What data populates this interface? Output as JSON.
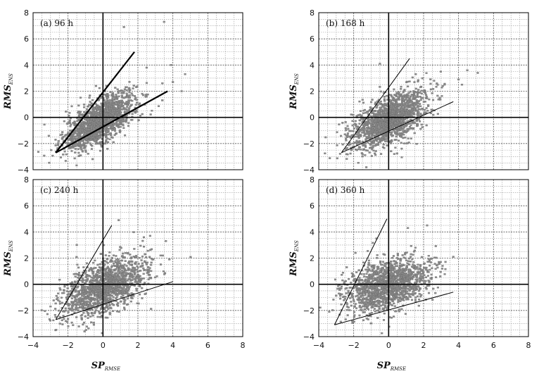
{
  "chart_data": [
    {
      "type": "scatter",
      "panel_label": "(a) 96 h",
      "xlabel": "SP",
      "xlabel_sub": "RMSE",
      "ylabel": "RMS",
      "ylabel_sub": "ENS",
      "xlim": [
        -4,
        8
      ],
      "ylim": [
        -4,
        8
      ],
      "xticks": [
        "−4",
        "−2",
        "0",
        "2",
        "4",
        "6",
        "8"
      ],
      "yticks": [
        "−4",
        "−2",
        "0",
        "2",
        "4",
        "6",
        "8"
      ],
      "grid": true,
      "cloud": {
        "center": [
          -0.2,
          -0.3
        ],
        "spread": [
          1.0,
          0.8
        ],
        "slope": 0.75
      },
      "lines": [
        {
          "x": [
            -2.7,
            1.8
          ],
          "y": [
            -2.7,
            5.0
          ]
        },
        {
          "x": [
            -2.7,
            3.7
          ],
          "y": [
            -2.7,
            2.0
          ]
        }
      ],
      "line_weight": "bold",
      "outliers": [
        [
          1.2,
          6.9
        ],
        [
          3.5,
          7.3
        ],
        [
          3.9,
          4.0
        ],
        [
          4.7,
          3.3
        ],
        [
          4.0,
          2.7
        ],
        [
          3.4,
          2.6
        ],
        [
          4.5,
          2.0
        ],
        [
          -0.4,
          2.4
        ],
        [
          2.5,
          3.8
        ]
      ]
    },
    {
      "type": "scatter",
      "panel_label": "(b) 168 h",
      "xlabel": "SP",
      "xlabel_sub": "RMSE",
      "ylabel": "RMS",
      "ylabel_sub": "ENS",
      "xlim": [
        -4,
        8
      ],
      "ylim": [
        -4,
        8
      ],
      "xticks": [
        "−4",
        "−2",
        "0",
        "2",
        "4",
        "6",
        "8"
      ],
      "yticks": [
        "−4",
        "−2",
        "0",
        "2",
        "4",
        "6",
        "8"
      ],
      "grid": true,
      "cloud": {
        "center": [
          0.0,
          -0.2
        ],
        "spread": [
          1.1,
          0.9
        ],
        "slope": 0.6
      },
      "lines": [
        {
          "x": [
            -2.7,
            1.2
          ],
          "y": [
            -2.7,
            4.5
          ]
        },
        {
          "x": [
            -2.7,
            3.7
          ],
          "y": [
            -2.7,
            1.2
          ]
        }
      ],
      "line_weight": "thin",
      "outliers": [
        [
          -0.5,
          4.1
        ],
        [
          4.5,
          3.6
        ],
        [
          5.1,
          3.4
        ],
        [
          4.0,
          2.9
        ],
        [
          4.2,
          2.5
        ],
        [
          3.2,
          2.5
        ],
        [
          2.6,
          2.8
        ],
        [
          -2.0,
          -1.5
        ]
      ]
    },
    {
      "type": "scatter",
      "panel_label": "(c) 240 h",
      "xlabel": "SP",
      "xlabel_sub": "RMSE",
      "ylabel": "RMS",
      "ylabel_sub": "ENS",
      "xlim": [
        -4,
        8
      ],
      "ylim": [
        -4,
        8
      ],
      "xticks": [
        "−4",
        "−2",
        "0",
        "2",
        "4",
        "6",
        "8"
      ],
      "yticks": [
        "−4",
        "−2",
        "0",
        "2",
        "4",
        "6",
        "8"
      ],
      "grid": true,
      "cloud": {
        "center": [
          0.1,
          -0.2
        ],
        "spread": [
          1.2,
          1.0
        ],
        "slope": 0.55
      },
      "lines": [
        {
          "x": [
            -2.7,
            0.5
          ],
          "y": [
            -2.7,
            4.5
          ]
        },
        {
          "x": [
            -2.7,
            4.0
          ],
          "y": [
            -2.7,
            0.2
          ]
        }
      ],
      "line_weight": "thin",
      "outliers": [
        [
          0.9,
          4.9
        ],
        [
          2.7,
          3.7
        ],
        [
          3.6,
          3.3
        ],
        [
          3.8,
          1.9
        ],
        [
          3.3,
          2.2
        ],
        [
          2.4,
          2.3
        ],
        [
          -1.5,
          3.0
        ],
        [
          -3.0,
          -1.7
        ]
      ]
    },
    {
      "type": "scatter",
      "panel_label": "(d) 360 h",
      "xlabel": "SP",
      "xlabel_sub": "RMSE",
      "ylabel": "RMS",
      "ylabel_sub": "ENS",
      "xlim": [
        -4,
        8
      ],
      "ylim": [
        -4,
        8
      ],
      "xticks": [
        "−4",
        "−2",
        "0",
        "2",
        "4",
        "6",
        "8"
      ],
      "yticks": [
        "−4",
        "−2",
        "0",
        "2",
        "4",
        "6",
        "8"
      ],
      "grid": true,
      "cloud": {
        "center": [
          -0.1,
          -0.1
        ],
        "spread": [
          1.2,
          0.95
        ],
        "slope": 0.35
      },
      "lines": [
        {
          "x": [
            -3.1,
            -0.1
          ],
          "y": [
            -3.1,
            5.0
          ]
        },
        {
          "x": [
            -3.1,
            3.7
          ],
          "y": [
            -3.1,
            -0.6
          ]
        }
      ],
      "line_weight": "thin",
      "outliers": [
        [
          2.2,
          4.5
        ],
        [
          1.1,
          4.3
        ],
        [
          -0.7,
          3.5
        ],
        [
          3.7,
          2.1
        ],
        [
          -1.9,
          2.4
        ],
        [
          -3.4,
          -2.1
        ],
        [
          2.9,
          1.6
        ],
        [
          -2.4,
          1.3
        ]
      ]
    }
  ]
}
